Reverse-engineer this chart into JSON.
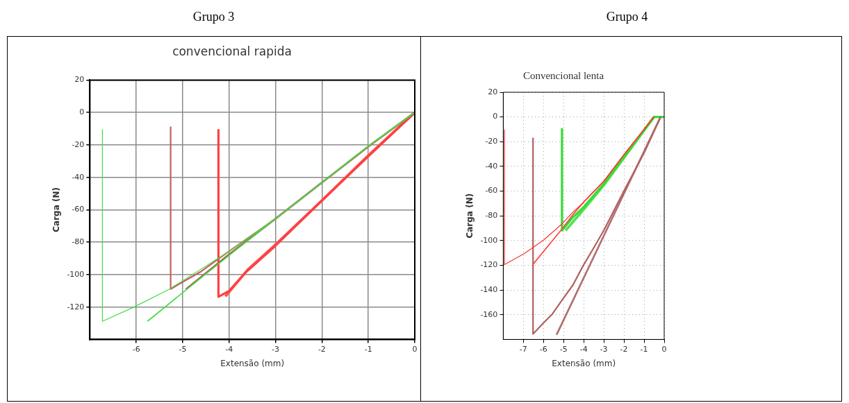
{
  "chart_data": [
    {
      "type": "line",
      "title": "Grupo 3",
      "subtitle": "convencional rapida",
      "xlabel": "Extensão (mm)",
      "ylabel": "Carga (N)",
      "xlim": [
        -7,
        0
      ],
      "ylim": [
        -140,
        20
      ],
      "xticks": [
        -6,
        -5,
        -4,
        -3,
        -2,
        -1,
        0
      ],
      "yticks": [
        20,
        0,
        -20,
        -40,
        -60,
        -80,
        -100,
        -120
      ],
      "grid": true,
      "marker": "none",
      "series": [
        {
          "color": "#44dd44",
          "x": [
            0,
            -1,
            -1.99,
            -3.02,
            -4.02,
            -5.29,
            -6.05,
            -6.73,
            -6.73
          ],
          "values": [
            0,
            -20.7,
            -43,
            -66,
            -86,
            -109,
            -120,
            -128.8,
            -10.3
          ]
        },
        {
          "color": "#44dd44",
          "x": [
            0,
            -1,
            -1.99,
            -3.02,
            -3.6,
            -4.52,
            -5.76
          ],
          "values": [
            0,
            -20.7,
            -43,
            -66,
            -79,
            -100,
            -128.8
          ]
        },
        {
          "color": "#c06060",
          "x": [
            0,
            -1,
            -1.99,
            -3.02,
            -4.02,
            -4.6,
            -5.26,
            -5.26
          ],
          "values": [
            0,
            -21,
            -43,
            -66,
            -86,
            -98,
            -108.9,
            -8.7
          ]
        },
        {
          "color": "#b05858",
          "x": [
            0,
            -1,
            -1.99,
            -3.02,
            -4.02,
            -4.93
          ],
          "values": [
            0,
            -21,
            -43,
            -66,
            -88,
            -109
          ]
        },
        {
          "color": "#ff4040",
          "x": [
            0,
            -1,
            -1.99,
            -3.02,
            -3.64,
            -4.0,
            -4.23,
            -4.23
          ],
          "values": [
            0,
            -27,
            -54,
            -82.7,
            -98.6,
            -110,
            -113.7,
            -10.3
          ]
        },
        {
          "color": "#ff5050",
          "x": [
            0,
            -1,
            -1.99,
            -3.02,
            -3.6,
            -4.08
          ],
          "values": [
            0,
            -26.5,
            -54,
            -82,
            -97,
            -113.4
          ]
        }
      ]
    },
    {
      "type": "line",
      "title": "Grupo 4",
      "subtitle": "Convencional lenta",
      "xlabel": "Extensão (mm)",
      "ylabel": "Carga (N)",
      "xlim": [
        -8,
        0
      ],
      "ylim": [
        -180,
        20
      ],
      "xticks": [
        -7,
        -6,
        -5,
        -4,
        -3,
        -2,
        -1,
        0
      ],
      "yticks": [
        20,
        0,
        -20,
        -40,
        -60,
        -80,
        -100,
        -120,
        -140,
        -160
      ],
      "grid": true,
      "marker": "none",
      "series": [
        {
          "color": "#ff3030",
          "x": [
            -0.51,
            -1.5,
            -2.0,
            -2.99,
            -3.49,
            -4.01,
            -4.54,
            -5.07,
            -5.99,
            -6.52,
            -6.98,
            -7.94,
            -7.94
          ],
          "values": [
            0,
            -20.3,
            -30.5,
            -51.8,
            -60,
            -69,
            -77,
            -86.3,
            -99.5,
            -105.6,
            -110.7,
            -119.4,
            -10.2
          ]
        },
        {
          "color": "#ff4444",
          "x": [
            -0.51,
            -1.5,
            -2.0,
            -2.99,
            -4.01,
            -4.54,
            -5.07,
            -6.53
          ],
          "values": [
            0,
            -20.3,
            -30.5,
            -51.8,
            -69,
            -79,
            -90.4,
            -119.4
          ]
        },
        {
          "color": "#b06060",
          "x": [
            -0.18,
            -0.98,
            -1.97,
            -2.99,
            -3.49,
            -4.01,
            -4.54,
            -5.07,
            -5.56,
            -5.99,
            -6.52,
            -6.52
          ],
          "values": [
            0,
            -28.4,
            -58.9,
            -91.4,
            -105.6,
            -119.8,
            -136,
            -148,
            -159.4,
            -166.5,
            -175.6,
            -16.7
          ]
        },
        {
          "color": "#b07070",
          "x": [
            -0.18,
            -3,
            -5.35
          ],
          "values": [
            0,
            -96,
            -176.2
          ]
        },
        {
          "color": "#33dd33",
          "x": [
            0,
            -0.51,
            -1.5,
            -2.99,
            -4.01,
            -4.54,
            -5.08,
            -5.08
          ],
          "values": [
            0,
            0,
            -21.5,
            -53.8,
            -73,
            -81.2,
            -91.8,
            -9.1
          ]
        },
        {
          "color": "#55e055",
          "x": [
            -0.51,
            -1.5,
            -2.99,
            -4.01,
            -4.9
          ],
          "values": [
            0,
            -22,
            -55,
            -75,
            -91.8
          ]
        }
      ]
    }
  ]
}
